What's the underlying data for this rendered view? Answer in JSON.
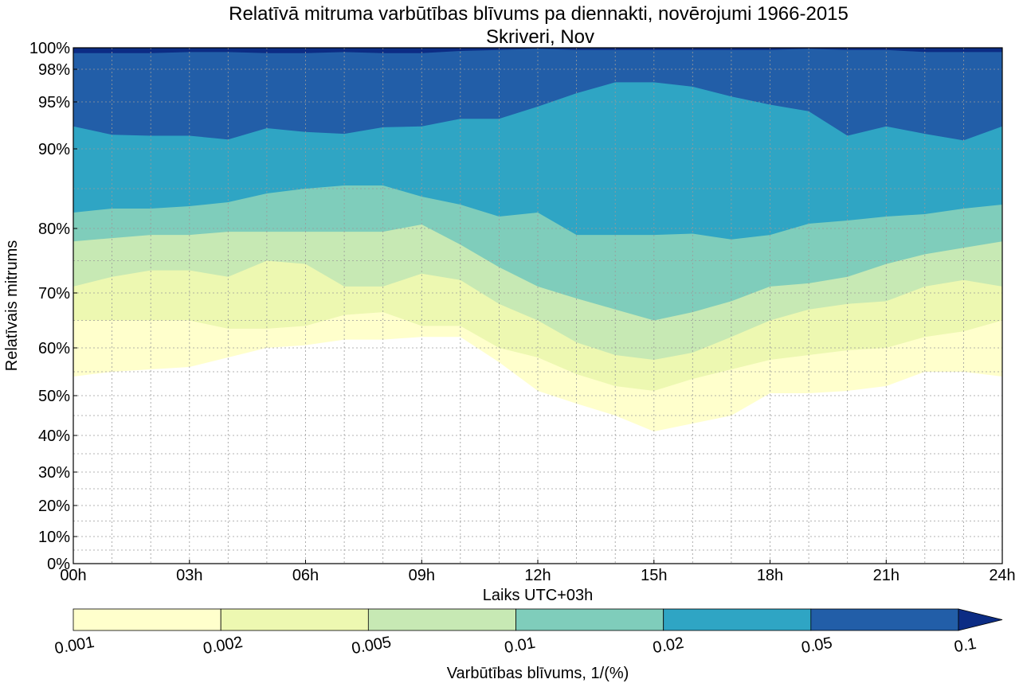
{
  "chart_data": {
    "type": "contourf",
    "title": "Relatīvā mitruma varbūtības blīvums pa diennakti, novērojumi 1966-2015",
    "subtitle": "Skriveri, Nov",
    "xlabel": "Laiks UTC+03h",
    "ylabel": "Relatīvais mitrums",
    "x_ticks": [
      "00h",
      "03h",
      "06h",
      "09h",
      "12h",
      "15h",
      "18h",
      "21h",
      "24h"
    ],
    "x_range": [
      0,
      24
    ],
    "y_ticks": [
      {
        "value": 0,
        "label": "0%"
      },
      {
        "value": 10,
        "label": "10%"
      },
      {
        "value": 20,
        "label": "20%"
      },
      {
        "value": 30,
        "label": "30%"
      },
      {
        "value": 40,
        "label": "40%"
      },
      {
        "value": 50,
        "label": "50%"
      },
      {
        "value": 60,
        "label": "60%"
      },
      {
        "value": 70,
        "label": "70%"
      },
      {
        "value": 80,
        "label": "80%"
      },
      {
        "value": 90,
        "label": "90%"
      },
      {
        "value": 95,
        "label": "95%"
      },
      {
        "value": 98,
        "label": "98%"
      },
      {
        "value": 100,
        "label": "100%"
      }
    ],
    "y_range": [
      0,
      100
    ],
    "grid": true,
    "colorbar": {
      "label": "Varbūtības blīvums, 1/(%)",
      "levels": [
        "0.001",
        "0.002",
        "0.005",
        "0.01",
        "0.02",
        "0.05",
        "0.1"
      ],
      "colors": [
        "#ffffcc",
        "#edf8b1",
        "#c7e9b4",
        "#7fcdbb",
        "#2fa5c4",
        "#225ea8",
        "#0c2c84"
      ],
      "extend": "max"
    },
    "contour_x": [
      0,
      1,
      2,
      3,
      4,
      5,
      6,
      7,
      8,
      9,
      10,
      11,
      12,
      13,
      14,
      15,
      16,
      17,
      18,
      19,
      20,
      21,
      22,
      23,
      24
    ],
    "contour_bounds": [
      {
        "level": "0.001",
        "lower": [
          54,
          55,
          55.5,
          56,
          58,
          60,
          60.5,
          61.5,
          61.5,
          62,
          62,
          57,
          51,
          48,
          45,
          41,
          43,
          45,
          50.5,
          50.5,
          51,
          52,
          55,
          55,
          54
        ]
      },
      {
        "level": "0.002",
        "lower": [
          65,
          65,
          65,
          65,
          63.5,
          63.5,
          64,
          66,
          66.5,
          64,
          64,
          60,
          58,
          54.5,
          52,
          51,
          53.5,
          55.5,
          57.5,
          58.5,
          59.5,
          60,
          62,
          63,
          65
        ]
      },
      {
        "level": "0.005",
        "lower": [
          71,
          72.5,
          73.5,
          73.5,
          72.5,
          75,
          74.5,
          71,
          71,
          73,
          72,
          68,
          65,
          61,
          58.5,
          57.5,
          59,
          62,
          65,
          67,
          68,
          68.5,
          71,
          72,
          71
        ]
      },
      {
        "level": "0.01",
        "lower": [
          78,
          78.5,
          79,
          79,
          79.5,
          79.5,
          79.5,
          79.5,
          79.5,
          80.5,
          77.5,
          74,
          71,
          69,
          67,
          65,
          66.5,
          68.5,
          71,
          71.5,
          72.5,
          74.5,
          76,
          77,
          78
        ]
      },
      {
        "level": "0.02",
        "lower": [
          82,
          82.5,
          82.5,
          82.8,
          83.3,
          84.4,
          85,
          85.4,
          85.4,
          84,
          83,
          81.5,
          82,
          79,
          79,
          79,
          79.2,
          78.3,
          79,
          80.6,
          81,
          81.5,
          81.8,
          82.5,
          83
        ]
      },
      {
        "level": "0.05",
        "lower": [
          92.4,
          91.5,
          91.4,
          91.4,
          91,
          92.2,
          91.8,
          91.6,
          92.3,
          92.4,
          93.2,
          93.2,
          94.5,
          95.8,
          96.8,
          96.8,
          96.4,
          95.5,
          94.7,
          94,
          91.4,
          92.4,
          91.6,
          90.9,
          92.4
        ]
      },
      {
        "level": "0.1",
        "lower": [
          99.5,
          99.5,
          99.5,
          99.6,
          99.6,
          99.5,
          99.5,
          99.6,
          99.5,
          99.5,
          99.7,
          99.8,
          99.9,
          99.8,
          99.8,
          99.8,
          99.8,
          99.8,
          99.8,
          99.9,
          99.8,
          99.8,
          99.6,
          99.6,
          99.6
        ]
      }
    ]
  }
}
